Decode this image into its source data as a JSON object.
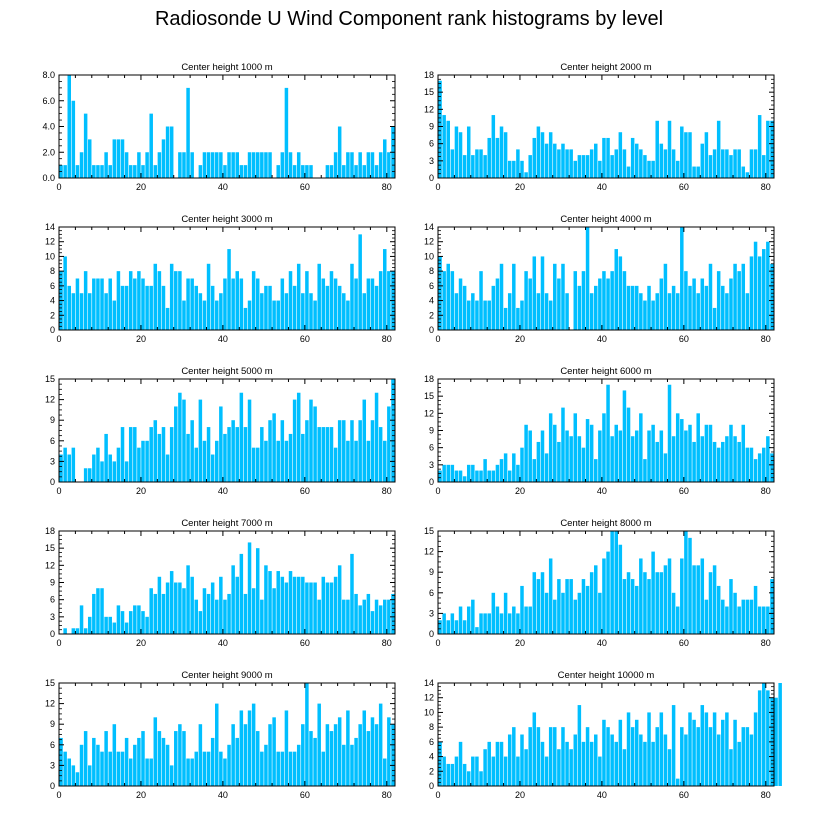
{
  "title": "Radiosonde U Wind Component rank histograms by level",
  "bar_color": "#00bfff",
  "chart_data": [
    {
      "type": "bar",
      "title": "Center height 1000 m",
      "xlim": [
        0,
        82
      ],
      "xticks": [
        0,
        20,
        40,
        60,
        80
      ],
      "ylim": [
        0,
        8
      ],
      "yticks": [
        "0.0",
        "2.0",
        "4.0",
        "6.0",
        "8.0"
      ],
      "values": [
        1,
        1,
        8,
        6,
        1,
        2,
        5,
        3,
        1,
        1,
        1,
        2,
        1,
        3,
        3,
        3,
        2,
        1,
        1,
        2,
        1,
        2,
        5,
        1,
        2,
        3,
        4,
        4,
        0,
        2,
        2,
        7,
        2,
        0,
        1,
        2,
        2,
        2,
        2,
        2,
        1,
        2,
        2,
        2,
        1,
        1,
        2,
        2,
        2,
        2,
        2,
        2,
        0,
        1,
        2,
        7,
        2,
        1,
        2,
        1,
        1,
        1,
        0,
        0,
        0,
        1,
        1,
        2,
        4,
        1,
        2,
        2,
        1,
        2,
        1,
        2,
        2,
        1,
        2,
        3,
        2,
        4
      ]
    },
    {
      "type": "bar",
      "title": "Center height 2000 m",
      "xlim": [
        0,
        82
      ],
      "xticks": [
        0,
        20,
        40,
        60,
        80
      ],
      "ylim": [
        0,
        18
      ],
      "yticks": [
        "0",
        "3",
        "6",
        "9",
        "12",
        "15",
        "18"
      ],
      "values": [
        17,
        11,
        10,
        5,
        9,
        8,
        4,
        9,
        4,
        5,
        5,
        4,
        7,
        11,
        7,
        9,
        8,
        3,
        3,
        5,
        3,
        1,
        4,
        7,
        9,
        8,
        6,
        8,
        6,
        5,
        6,
        5,
        5,
        3,
        4,
        4,
        4,
        5,
        6,
        3,
        7,
        7,
        4,
        5,
        8,
        5,
        2,
        7,
        6,
        5,
        4,
        3,
        3,
        10,
        6,
        5,
        10,
        5,
        3,
        9,
        8,
        8,
        2,
        2,
        6,
        8,
        4,
        5,
        10,
        5,
        5,
        4,
        5,
        5,
        2,
        1,
        5,
        5,
        11,
        4,
        10,
        10
      ]
    },
    {
      "type": "bar",
      "title": "Center height 3000 m",
      "xlim": [
        0,
        82
      ],
      "xticks": [
        0,
        20,
        40,
        60,
        80
      ],
      "ylim": [
        0,
        14
      ],
      "yticks": [
        "0",
        "2",
        "4",
        "6",
        "8",
        "10",
        "12",
        "14"
      ],
      "values": [
        8,
        10,
        6,
        5,
        7,
        5,
        8,
        5,
        7,
        7,
        7,
        5,
        7,
        4,
        8,
        6,
        6,
        8,
        7,
        8,
        7,
        6,
        6,
        9,
        8,
        6,
        3,
        9,
        8,
        8,
        4,
        7,
        7,
        6,
        5,
        4,
        9,
        6,
        4,
        5,
        7,
        11,
        7,
        8,
        7,
        3,
        4,
        8,
        7,
        5,
        6,
        6,
        4,
        4,
        7,
        5,
        8,
        6,
        9,
        5,
        8,
        5,
        4,
        9,
        7,
        6,
        8,
        7,
        6,
        5,
        4,
        9,
        7,
        13,
        5,
        7,
        7,
        6,
        8,
        11,
        8,
        8
      ]
    },
    {
      "type": "bar",
      "title": "Center height 4000 m",
      "xlim": [
        0,
        82
      ],
      "xticks": [
        0,
        20,
        40,
        60,
        80
      ],
      "ylim": [
        0,
        14
      ],
      "yticks": [
        "0",
        "2",
        "4",
        "6",
        "8",
        "10",
        "12",
        "14"
      ],
      "values": [
        10,
        8,
        9,
        8,
        5,
        7,
        6,
        4,
        5,
        4,
        8,
        4,
        4,
        6,
        7,
        9,
        3,
        5,
        9,
        3,
        4,
        8,
        7,
        10,
        5,
        10,
        5,
        4,
        9,
        7,
        9,
        5,
        0,
        8,
        6,
        8,
        14,
        5,
        6,
        7,
        8,
        7,
        8,
        11,
        10,
        8,
        6,
        6,
        6,
        5,
        4,
        6,
        4,
        5,
        7,
        9,
        5,
        6,
        5,
        14,
        8,
        6,
        7,
        5,
        7,
        6,
        9,
        3,
        8,
        6,
        5,
        7,
        9,
        8,
        9,
        5,
        10,
        12,
        10,
        11,
        12,
        9
      ]
    },
    {
      "type": "bar",
      "title": "Center height 5000 m",
      "xlim": [
        0,
        82
      ],
      "xticks": [
        0,
        20,
        40,
        60,
        80
      ],
      "ylim": [
        0,
        15
      ],
      "yticks": [
        "0",
        "3",
        "6",
        "9",
        "12",
        "15"
      ],
      "values": [
        4,
        5,
        4,
        5,
        0,
        0,
        2,
        2,
        4,
        5,
        3,
        7,
        4,
        3,
        5,
        8,
        3,
        8,
        8,
        5,
        6,
        6,
        8,
        9,
        7,
        8,
        4,
        8,
        11,
        13,
        12,
        7,
        9,
        5,
        12,
        6,
        8,
        4,
        6,
        11,
        7,
        8,
        9,
        8,
        13,
        8,
        12,
        5,
        5,
        8,
        6,
        9,
        10,
        6,
        9,
        6,
        7,
        12,
        13,
        7,
        9,
        12,
        11,
        8,
        8,
        8,
        8,
        5,
        9,
        9,
        6,
        9,
        6,
        9,
        12,
        6,
        9,
        13,
        8,
        6,
        11,
        15
      ]
    },
    {
      "type": "bar",
      "title": "Center height 6000 m",
      "xlim": [
        0,
        82
      ],
      "xticks": [
        0,
        20,
        40,
        60,
        80
      ],
      "ylim": [
        0,
        18
      ],
      "yticks": [
        "0",
        "3",
        "6",
        "9",
        "12",
        "15",
        "18"
      ],
      "values": [
        2,
        3,
        3,
        3,
        2,
        2,
        1,
        3,
        3,
        2,
        2,
        4,
        2,
        2,
        3,
        4,
        5,
        2,
        5,
        3,
        6,
        10,
        9,
        4,
        7,
        9,
        5,
        12,
        10,
        7,
        13,
        9,
        8,
        12,
        8,
        6,
        11,
        10,
        4,
        9,
        12,
        17,
        8,
        10,
        9,
        16,
        13,
        8,
        9,
        12,
        4,
        9,
        10,
        7,
        9,
        5,
        17,
        8,
        12,
        11,
        9,
        10,
        7,
        12,
        8,
        10,
        10,
        7,
        6,
        7,
        8,
        10,
        8,
        7,
        10,
        6,
        6,
        4,
        5,
        6,
        8,
        5
      ]
    },
    {
      "type": "bar",
      "title": "Center height 7000 m",
      "xlim": [
        0,
        82
      ],
      "xticks": [
        0,
        20,
        40,
        60,
        80
      ],
      "ylim": [
        0,
        18
      ],
      "yticks": [
        "0",
        "3",
        "6",
        "9",
        "12",
        "15",
        "18"
      ],
      "values": [
        0,
        1,
        0,
        1,
        1,
        5,
        1,
        3,
        7,
        8,
        8,
        3,
        3,
        2,
        5,
        4,
        2,
        4,
        5,
        5,
        4,
        3,
        8,
        7,
        10,
        7,
        9,
        11,
        9,
        9,
        8,
        12,
        10,
        6,
        4,
        8,
        7,
        9,
        6,
        10,
        6,
        7,
        12,
        10,
        14,
        7,
        16,
        8,
        15,
        6,
        12,
        11,
        8,
        11,
        10,
        9,
        11,
        10,
        10,
        10,
        9,
        9,
        9,
        6,
        10,
        9,
        9,
        10,
        12,
        6,
        6,
        14,
        7,
        5,
        6,
        7,
        4,
        6,
        5,
        6,
        6,
        7
      ]
    },
    {
      "type": "bar",
      "title": "Center height 8000 m",
      "xlim": [
        0,
        82
      ],
      "xticks": [
        0,
        20,
        40,
        60,
        80
      ],
      "ylim": [
        0,
        15
      ],
      "yticks": [
        "0",
        "3",
        "6",
        "9",
        "12",
        "15"
      ],
      "values": [
        2,
        3,
        2,
        3,
        2,
        4,
        2,
        4,
        5,
        1,
        3,
        3,
        3,
        6,
        4,
        3,
        6,
        3,
        4,
        3,
        7,
        4,
        4,
        9,
        8,
        9,
        6,
        11,
        5,
        8,
        6,
        8,
        8,
        5,
        6,
        8,
        7,
        9,
        10,
        6,
        11,
        12,
        15,
        15,
        13,
        8,
        9,
        8,
        7,
        11,
        9,
        8,
        12,
        9,
        9,
        10,
        11,
        6,
        4,
        11,
        15,
        14,
        10,
        10,
        11,
        5,
        9,
        10,
        7,
        5,
        4,
        8,
        6,
        4,
        5,
        5,
        5,
        7,
        4,
        4,
        4,
        8
      ]
    },
    {
      "type": "bar",
      "title": "Center height 9000 m",
      "xlim": [
        0,
        82
      ],
      "xticks": [
        0,
        20,
        40,
        60,
        80
      ],
      "ylim": [
        0,
        15
      ],
      "yticks": [
        "0",
        "3",
        "6",
        "9",
        "12",
        "15"
      ],
      "values": [
        7,
        5,
        4,
        3,
        2,
        6,
        8,
        3,
        7,
        6,
        5,
        8,
        5,
        9,
        5,
        5,
        7,
        4,
        6,
        7,
        8,
        4,
        4,
        10,
        8,
        7,
        6,
        3,
        8,
        9,
        8,
        4,
        4,
        5,
        9,
        5,
        5,
        7,
        12,
        5,
        4,
        6,
        9,
        7,
        11,
        9,
        11,
        12,
        8,
        5,
        6,
        9,
        10,
        5,
        5,
        11,
        5,
        5,
        6,
        9,
        15,
        8,
        7,
        12,
        5,
        9,
        8,
        9,
        10,
        6,
        11,
        6,
        7,
        9,
        11,
        8,
        10,
        9,
        12,
        4,
        10,
        9
      ]
    },
    {
      "type": "bar",
      "title": "Center height 10000 m",
      "xlim": [
        0,
        82
      ],
      "xticks": [
        0,
        20,
        40,
        60,
        80
      ],
      "ylim": [
        0,
        14
      ],
      "yticks": [
        "0",
        "2",
        "4",
        "6",
        "8",
        "10",
        "12",
        "14"
      ],
      "values": [
        6,
        4,
        3,
        3,
        4,
        6,
        3,
        2,
        4,
        4,
        2,
        5,
        6,
        4,
        6,
        6,
        4,
        7,
        8,
        4,
        7,
        5,
        8,
        10,
        8,
        6,
        4,
        8,
        8,
        5,
        8,
        6,
        5,
        7,
        11,
        6,
        8,
        6,
        7,
        4,
        9,
        8,
        7,
        6,
        9,
        5,
        10,
        8,
        9,
        7,
        6,
        10,
        6,
        8,
        10,
        7,
        5,
        11,
        1,
        8,
        7,
        10,
        9,
        8,
        11,
        10,
        8,
        10,
        7,
        9,
        10,
        5,
        9,
        6,
        8,
        8,
        7,
        10,
        13,
        14,
        13,
        12,
        12,
        14
      ]
    }
  ]
}
